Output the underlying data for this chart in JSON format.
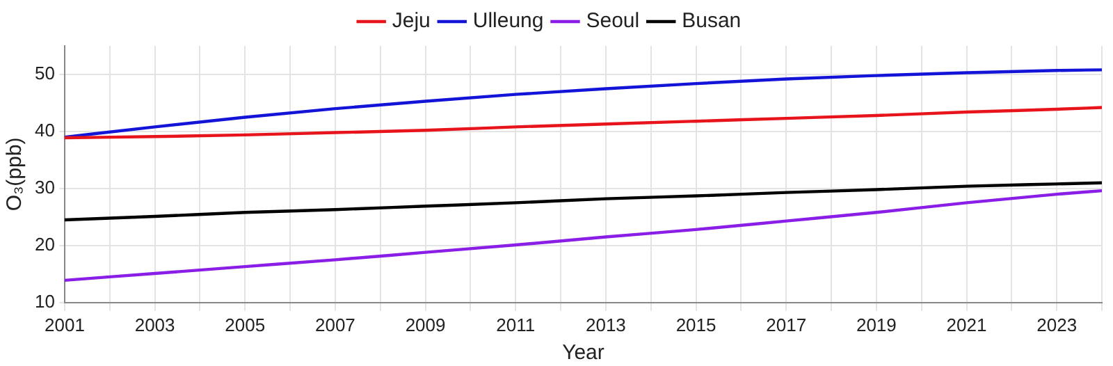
{
  "chart_data": {
    "type": "line",
    "xlabel": "Year",
    "ylabel": "O₃(ppb)",
    "x": [
      2001,
      2003,
      2005,
      2007,
      2009,
      2011,
      2013,
      2015,
      2017,
      2019,
      2021,
      2023,
      2024
    ],
    "series": [
      {
        "name": "Jeju",
        "color": "#e8141c",
        "values": [
          38.9,
          39.1,
          39.4,
          39.8,
          40.2,
          40.8,
          41.3,
          41.8,
          42.3,
          42.8,
          43.4,
          43.9,
          44.2
        ]
      },
      {
        "name": "Ulleung",
        "color": "#1414d8",
        "values": [
          39,
          40.8,
          42.5,
          44,
          45.3,
          46.5,
          47.5,
          48.4,
          49.2,
          49.8,
          50.3,
          50.7,
          50.8
        ]
      },
      {
        "name": "Seoul",
        "color": "#8a1ee6",
        "values": [
          13.9,
          15.1,
          16.3,
          17.5,
          18.8,
          20.1,
          21.5,
          22.8,
          24.3,
          25.8,
          27.5,
          29.0,
          29.6
        ]
      },
      {
        "name": "Busan",
        "color": "#000000",
        "values": [
          24.5,
          25.1,
          25.8,
          26.3,
          26.9,
          27.5,
          28.2,
          28.7,
          29.3,
          29.8,
          30.4,
          30.8,
          31.0
        ]
      }
    ],
    "xlim": [
      2001,
      2024
    ],
    "xticks": [
      2001,
      {
        "value": 2002,
        "label": null
      },
      2003,
      {
        "value": 2004,
        "label": null
      },
      2005,
      {
        "value": 2006,
        "label": null
      },
      2007,
      {
        "value": 2008,
        "label": null
      },
      2009,
      {
        "value": 2010,
        "label": null
      },
      2011,
      {
        "value": 2012,
        "label": null
      },
      2013,
      {
        "value": 2014,
        "label": null
      },
      2015,
      {
        "value": 2016,
        "label": null
      },
      2017,
      {
        "value": 2018,
        "label": null
      },
      2019,
      {
        "value": 2020,
        "label": null
      },
      2021,
      {
        "value": 2022,
        "label": null
      },
      2023,
      {
        "value": 2024,
        "label": null
      }
    ],
    "ylim": [
      10,
      55
    ],
    "yticks": [
      10,
      20,
      30,
      40,
      50
    ],
    "grid": true,
    "legend": "top",
    "marker": "none",
    "line_style": "solid"
  }
}
